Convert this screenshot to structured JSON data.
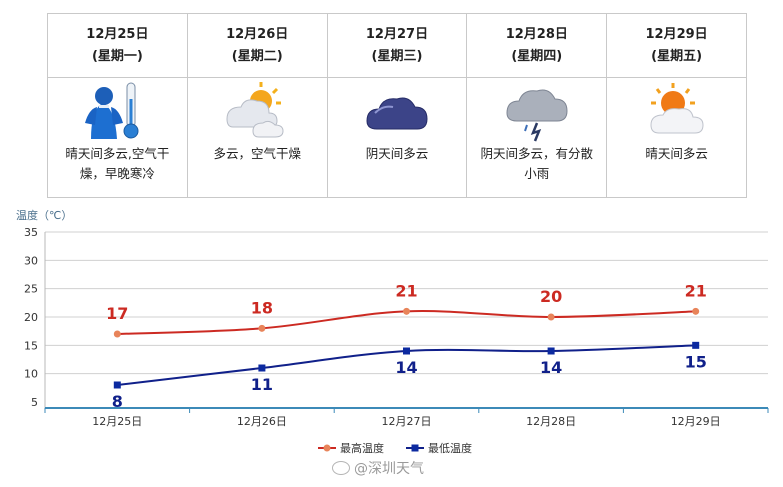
{
  "forecast": {
    "days": [
      {
        "date": "12月25日",
        "weekday": "(星期一)",
        "icon": "clear-cold-person-thermometer-icon",
        "desc": "晴天间多云,空气干燥，早晚寒冷"
      },
      {
        "date": "12月26日",
        "weekday": "(星期二)",
        "icon": "partly-cloudy-icon",
        "desc": "多云，空气干燥"
      },
      {
        "date": "12月27日",
        "weekday": "(星期三)",
        "icon": "overcast-cloud-icon",
        "desc": "阴天间多云"
      },
      {
        "date": "12月28日",
        "weekday": "(星期四)",
        "icon": "cloud-rain-icon",
        "desc": "阴天间多云，有分散小雨"
      },
      {
        "date": "12月29日",
        "weekday": "(星期五)",
        "icon": "sun-cloud-icon",
        "desc": "晴天间多云"
      }
    ]
  },
  "chart_data": {
    "type": "line",
    "ylabel": "温度（℃）",
    "categories": [
      "12月25日",
      "12月26日",
      "12月27日",
      "12月28日",
      "12月29日"
    ],
    "ylim": [
      5,
      35
    ],
    "yticks": [
      5,
      10,
      15,
      20,
      25,
      30,
      35
    ],
    "grid": true,
    "legend_position": "bottom-center",
    "series": [
      {
        "name": "最高温度",
        "values": [
          17,
          18,
          21,
          20,
          21
        ],
        "color": "#cc2a22",
        "marker_color": "#e8845a",
        "marker": "circle"
      },
      {
        "name": "最低温度",
        "values": [
          8,
          11,
          14,
          14,
          15
        ],
        "color": "#10208a",
        "marker_color": "#0c2aa0",
        "marker": "square"
      }
    ]
  },
  "watermark": "@深圳天气"
}
